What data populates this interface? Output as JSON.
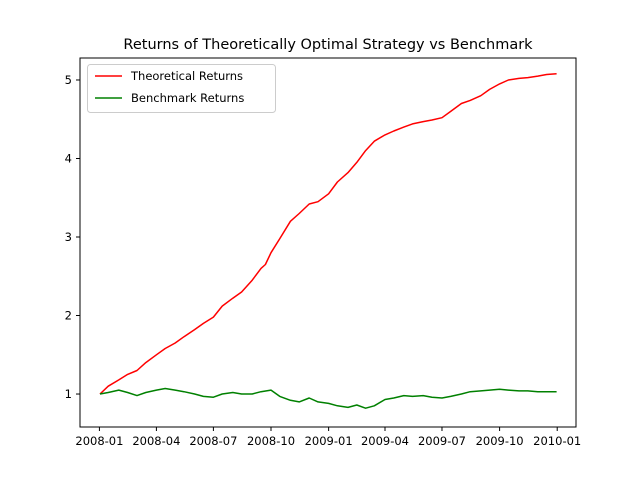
{
  "chart_data": {
    "type": "line",
    "title": "Returns of Theoretically Optimal Strategy vs Benchmark",
    "xlabel": "",
    "ylabel": "",
    "x_type": "date",
    "xlim": [
      "2007-12-01",
      "2010-01-31"
    ],
    "ylim": [
      0.58,
      5.28
    ],
    "x_ticks": [
      "2008-01",
      "2008-04",
      "2008-07",
      "2008-10",
      "2009-01",
      "2009-04",
      "2009-07",
      "2009-10",
      "2010-01"
    ],
    "y_ticks": [
      1,
      2,
      3,
      4,
      5
    ],
    "grid": false,
    "legend_position": "upper-left",
    "series": [
      {
        "name": "Theoretical Returns",
        "color": "#ff0000",
        "x": [
          "2008-01-02",
          "2008-01-15",
          "2008-02-01",
          "2008-02-15",
          "2008-03-01",
          "2008-03-15",
          "2008-04-01",
          "2008-04-15",
          "2008-05-01",
          "2008-05-15",
          "2008-06-01",
          "2008-06-15",
          "2008-07-01",
          "2008-07-15",
          "2008-08-01",
          "2008-08-15",
          "2008-09-01",
          "2008-09-15",
          "2008-09-22",
          "2008-10-01",
          "2008-10-15",
          "2008-11-01",
          "2008-11-15",
          "2008-12-01",
          "2008-12-15",
          "2009-01-01",
          "2009-01-15",
          "2009-02-01",
          "2009-02-15",
          "2009-03-01",
          "2009-03-15",
          "2009-04-01",
          "2009-04-15",
          "2009-05-01",
          "2009-05-15",
          "2009-06-01",
          "2009-06-15",
          "2009-07-01",
          "2009-07-15",
          "2009-08-01",
          "2009-08-15",
          "2009-09-01",
          "2009-09-15",
          "2009-10-01",
          "2009-10-15",
          "2009-11-01",
          "2009-11-15",
          "2009-12-01",
          "2009-12-15",
          "2009-12-31"
        ],
        "values": [
          1.0,
          1.1,
          1.18,
          1.25,
          1.3,
          1.4,
          1.5,
          1.58,
          1.65,
          1.73,
          1.82,
          1.9,
          1.98,
          2.12,
          2.22,
          2.3,
          2.45,
          2.6,
          2.65,
          2.8,
          2.98,
          3.2,
          3.3,
          3.42,
          3.45,
          3.55,
          3.7,
          3.82,
          3.95,
          4.1,
          4.22,
          4.3,
          4.35,
          4.4,
          4.44,
          4.47,
          4.49,
          4.52,
          4.6,
          4.7,
          4.74,
          4.8,
          4.88,
          4.95,
          5.0,
          5.02,
          5.03,
          5.05,
          5.07,
          5.08
        ]
      },
      {
        "name": "Benchmark Returns",
        "color": "#008000",
        "x": [
          "2008-01-02",
          "2008-01-15",
          "2008-02-01",
          "2008-02-15",
          "2008-03-01",
          "2008-03-15",
          "2008-04-01",
          "2008-04-15",
          "2008-05-01",
          "2008-05-15",
          "2008-06-01",
          "2008-06-15",
          "2008-07-01",
          "2008-07-15",
          "2008-08-01",
          "2008-08-15",
          "2008-09-01",
          "2008-09-15",
          "2008-10-01",
          "2008-10-15",
          "2008-11-01",
          "2008-11-15",
          "2008-12-01",
          "2008-12-15",
          "2009-01-01",
          "2009-01-15",
          "2009-02-01",
          "2009-02-15",
          "2009-03-01",
          "2009-03-15",
          "2009-04-01",
          "2009-04-15",
          "2009-05-01",
          "2009-05-15",
          "2009-06-01",
          "2009-06-15",
          "2009-07-01",
          "2009-07-15",
          "2009-08-01",
          "2009-08-15",
          "2009-09-01",
          "2009-09-15",
          "2009-10-01",
          "2009-10-15",
          "2009-11-01",
          "2009-11-15",
          "2009-12-01",
          "2009-12-15",
          "2009-12-31"
        ],
        "values": [
          1.0,
          1.02,
          1.05,
          1.02,
          0.98,
          1.02,
          1.05,
          1.07,
          1.05,
          1.03,
          1.0,
          0.97,
          0.96,
          1.0,
          1.02,
          1.0,
          1.0,
          1.03,
          1.05,
          0.97,
          0.92,
          0.9,
          0.95,
          0.9,
          0.88,
          0.85,
          0.83,
          0.86,
          0.82,
          0.85,
          0.93,
          0.95,
          0.98,
          0.97,
          0.98,
          0.96,
          0.95,
          0.97,
          1.0,
          1.03,
          1.04,
          1.05,
          1.06,
          1.05,
          1.04,
          1.04,
          1.03,
          1.03,
          1.03
        ]
      }
    ]
  }
}
